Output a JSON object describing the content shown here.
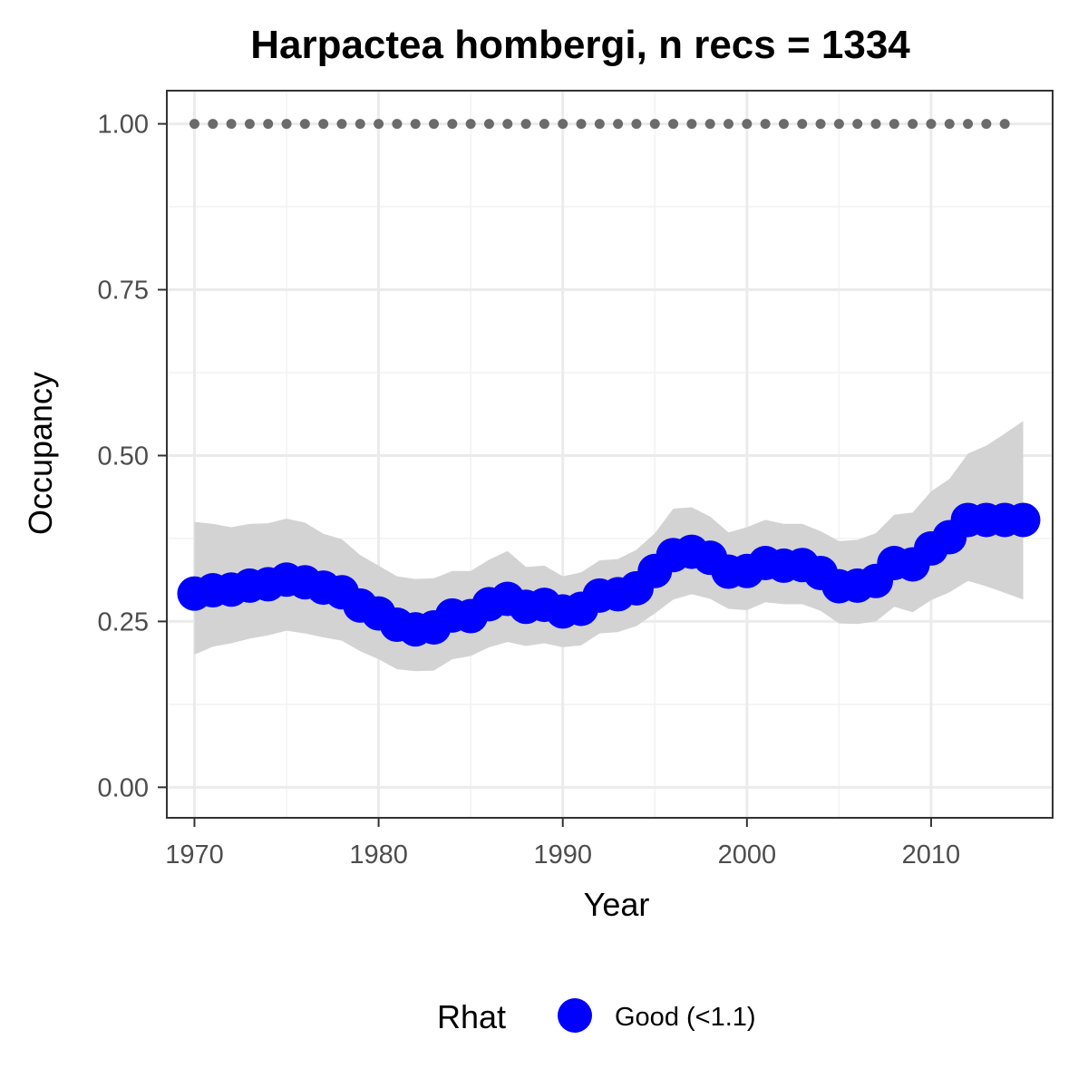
{
  "chart_data": {
    "type": "line",
    "title": "Harpactea hombergi, n recs = 1334",
    "xlabel": "Year",
    "ylabel": "Occupancy",
    "xlim": [
      1968.5,
      2016.6
    ],
    "ylim": [
      -0.046,
      1.05
    ],
    "x_ticks": [
      1970,
      1980,
      1990,
      2000,
      2010
    ],
    "x_tick_labels": [
      "1970",
      "1980",
      "1990",
      "2000",
      "2010"
    ],
    "y_ticks": [
      0,
      0.25,
      0.5,
      0.75,
      1.0
    ],
    "y_tick_labels": [
      "0.00",
      "0.25",
      "0.50",
      "0.75",
      "1.00"
    ],
    "grid": true,
    "legend_position": "bottom",
    "legend": {
      "title": "Rhat",
      "entries": [
        {
          "label": "Good (<1.1)",
          "color": "#0000ff"
        }
      ]
    },
    "colors": {
      "points": "#0000ff",
      "ribbon": "#d3d3d3",
      "reference": "#6b6b6b"
    },
    "x": [
      1970,
      1971,
      1972,
      1973,
      1974,
      1975,
      1976,
      1977,
      1978,
      1979,
      1980,
      1981,
      1982,
      1983,
      1984,
      1985,
      1986,
      1987,
      1988,
      1989,
      1990,
      1991,
      1992,
      1993,
      1994,
      1995,
      1996,
      1997,
      1998,
      1999,
      2000,
      2001,
      2002,
      2003,
      2004,
      2005,
      2006,
      2007,
      2008,
      2009,
      2010,
      2011,
      2012,
      2013,
      2014,
      2015
    ],
    "series": [
      {
        "values": [
          0.292,
          0.297,
          0.298,
          0.304,
          0.306,
          0.313,
          0.309,
          0.301,
          0.294,
          0.274,
          0.262,
          0.245,
          0.238,
          0.241,
          0.259,
          0.258,
          0.276,
          0.284,
          0.272,
          0.275,
          0.265,
          0.269,
          0.289,
          0.291,
          0.3,
          0.326,
          0.35,
          0.355,
          0.346,
          0.325,
          0.326,
          0.338,
          0.334,
          0.335,
          0.323,
          0.303,
          0.304,
          0.311,
          0.338,
          0.336,
          0.36,
          0.377,
          0.403,
          0.403,
          0.403,
          0.403
        ]
      },
      {
        "name": "ribbon",
        "upper": [
          0.4,
          0.397,
          0.392,
          0.397,
          0.398,
          0.405,
          0.399,
          0.382,
          0.374,
          0.35,
          0.334,
          0.318,
          0.314,
          0.315,
          0.326,
          0.326,
          0.343,
          0.356,
          0.332,
          0.334,
          0.318,
          0.324,
          0.342,
          0.344,
          0.358,
          0.383,
          0.42,
          0.422,
          0.408,
          0.384,
          0.392,
          0.403,
          0.397,
          0.397,
          0.386,
          0.371,
          0.373,
          0.383,
          0.411,
          0.414,
          0.446,
          0.465,
          0.503,
          0.515,
          0.533,
          0.552
        ],
        "lower": [
          0.2,
          0.212,
          0.217,
          0.224,
          0.229,
          0.236,
          0.232,
          0.226,
          0.221,
          0.205,
          0.193,
          0.178,
          0.175,
          0.176,
          0.193,
          0.198,
          0.211,
          0.219,
          0.213,
          0.217,
          0.211,
          0.214,
          0.232,
          0.234,
          0.243,
          0.262,
          0.283,
          0.291,
          0.284,
          0.269,
          0.267,
          0.279,
          0.276,
          0.276,
          0.266,
          0.247,
          0.246,
          0.25,
          0.272,
          0.264,
          0.282,
          0.294,
          0.311,
          0.303,
          0.293,
          0.283
        ]
      },
      {
        "name": "reference",
        "x_range": [
          1970,
          2014
        ],
        "value": 1.0
      }
    ]
  }
}
